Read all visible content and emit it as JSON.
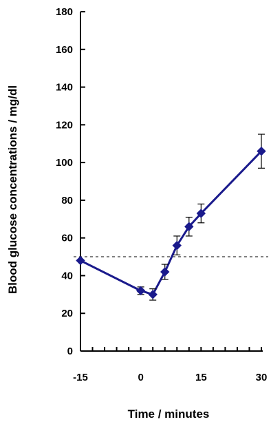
{
  "chart_data": {
    "type": "line",
    "xlabel": "Time / minutes",
    "ylabel": "Blood glucose concentrations / mg/dl",
    "xlim": [
      -15,
      30
    ],
    "ylim": [
      0,
      180
    ],
    "x_ticks": [
      -15,
      0,
      15,
      30
    ],
    "y_ticks": [
      0,
      20,
      40,
      60,
      80,
      100,
      120,
      140,
      160,
      180
    ],
    "grid": false,
    "legend": "none",
    "reference_line": {
      "y": 50,
      "style": "dashed"
    },
    "series": [
      {
        "color": "#1a1a8c",
        "marker": "diamond",
        "x": [
          -15,
          0,
          3,
          6,
          9,
          12,
          15,
          30
        ],
        "y": [
          48,
          32,
          30,
          42,
          56,
          66,
          73,
          106
        ],
        "error": [
          0,
          2,
          3,
          4,
          5,
          5,
          5,
          9
        ]
      }
    ]
  }
}
